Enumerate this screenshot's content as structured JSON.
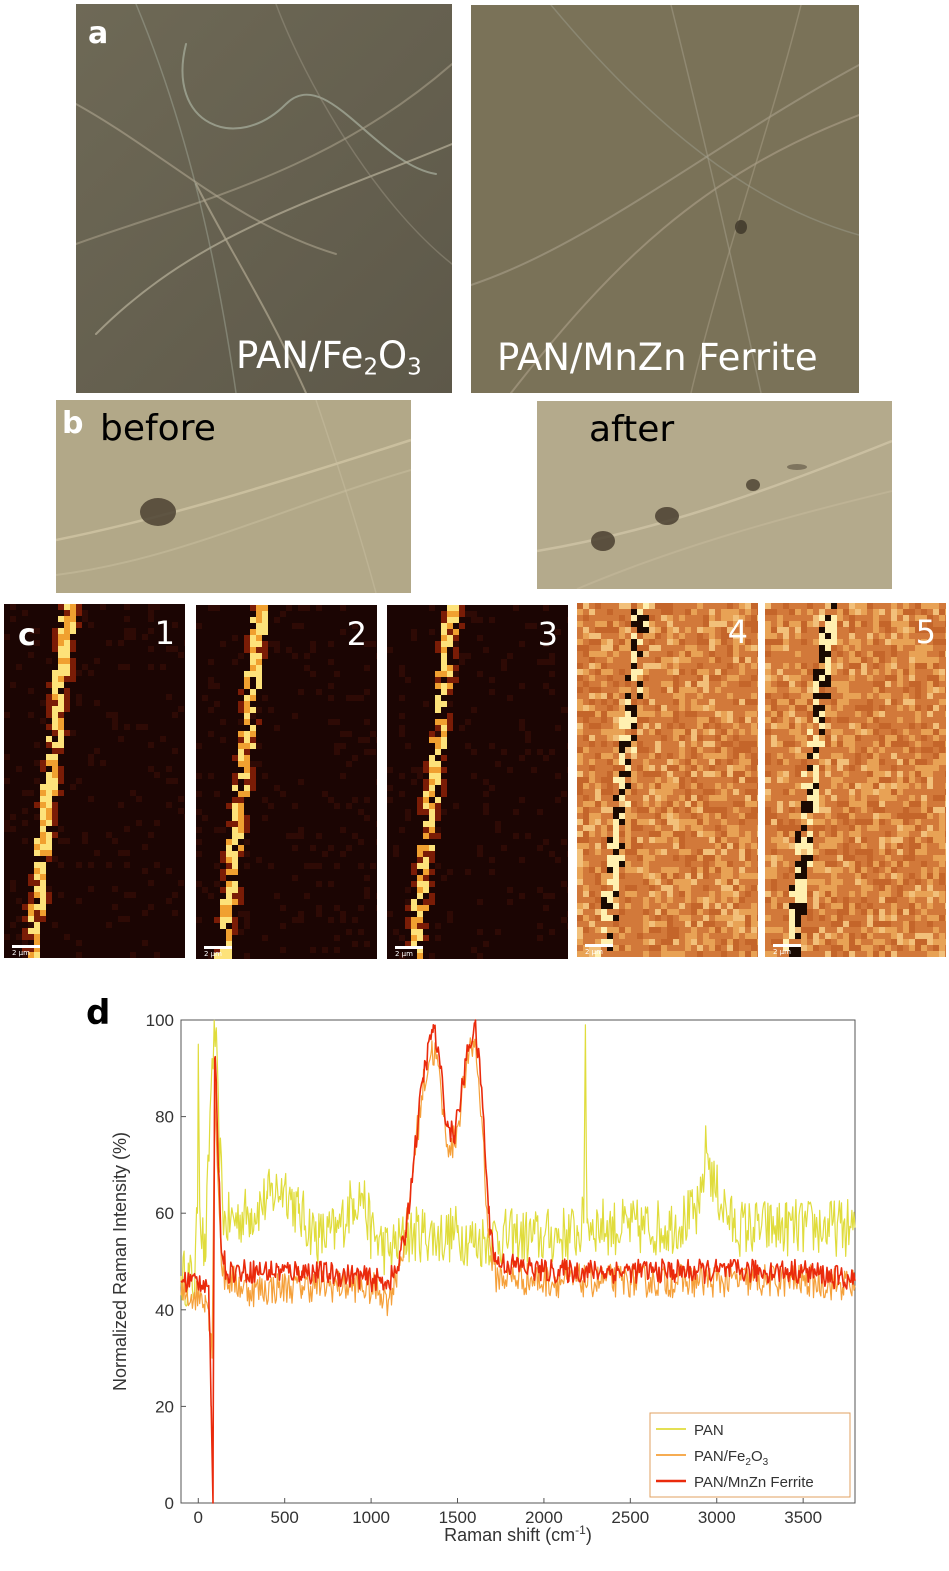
{
  "panels": {
    "a": {
      "letter": "a",
      "left_label": {
        "main": "PAN/Fe",
        "sub1": "2",
        "mid": "O",
        "sub2": "3"
      },
      "right_label": "PAN/MnZn Ferrite"
    },
    "b": {
      "letter": "b",
      "before": "before",
      "after": "after"
    },
    "c": {
      "letter": "c",
      "maps": [
        {
          "num": "1",
          "style": "dark"
        },
        {
          "num": "2",
          "style": "dark"
        },
        {
          "num": "3",
          "style": "dark"
        },
        {
          "num": "4",
          "style": "orange"
        },
        {
          "num": "5",
          "style": "orange"
        }
      ],
      "scale_label": "2 μm"
    },
    "d": {
      "letter": "d"
    }
  },
  "colors": {
    "pan": "#e0dc3c",
    "pan_fe2o3": "#f5a03a",
    "pan_mnzn": "#ea2a0c"
  },
  "chart_data": {
    "type": "line",
    "xlabel": "Raman shift (cm",
    "xlabel_sup": "-1",
    "xlabel_end": ")",
    "ylabel": "Normalized Raman Intensity (%)",
    "xlim": [
      -100,
      3800
    ],
    "ylim": [
      0,
      100
    ],
    "xticks": [
      0,
      500,
      1000,
      1500,
      2000,
      2500,
      3000,
      3500
    ],
    "yticks": [
      0,
      20,
      40,
      60,
      80,
      100
    ],
    "legend_position": "bottom-right",
    "series": [
      {
        "name": "PAN",
        "color": "#e0dc3c",
        "noise": 6,
        "points": [
          [
            -100,
            47
          ],
          [
            -20,
            46
          ],
          [
            -5,
            60
          ],
          [
            0,
            95
          ],
          [
            10,
            60
          ],
          [
            40,
            50
          ],
          [
            80,
            92
          ],
          [
            100,
            97
          ],
          [
            120,
            75
          ],
          [
            150,
            58
          ],
          [
            300,
            60
          ],
          [
            400,
            63
          ],
          [
            500,
            66
          ],
          [
            580,
            60
          ],
          [
            700,
            55
          ],
          [
            800,
            56
          ],
          [
            900,
            63
          ],
          [
            950,
            64
          ],
          [
            1000,
            56
          ],
          [
            1100,
            52
          ],
          [
            1200,
            55
          ],
          [
            1300,
            56
          ],
          [
            1400,
            55
          ],
          [
            1500,
            56
          ],
          [
            1600,
            54
          ],
          [
            1700,
            55
          ],
          [
            2000,
            55
          ],
          [
            2200,
            56
          ],
          [
            2230,
            58
          ],
          [
            2240,
            99
          ],
          [
            2250,
            58
          ],
          [
            2400,
            57
          ],
          [
            2700,
            57
          ],
          [
            2900,
            60
          ],
          [
            2940,
            74
          ],
          [
            2980,
            66
          ],
          [
            3100,
            57
          ],
          [
            3400,
            57
          ],
          [
            3800,
            57
          ]
        ]
      },
      {
        "name": "PAN/Fe2O3",
        "name_display": {
          "main": "PAN/Fe",
          "sub1": "2",
          "mid": "O",
          "sub2": "3"
        },
        "color": "#f5a03a",
        "noise": 3.5,
        "points": [
          [
            -100,
            43
          ],
          [
            40,
            43
          ],
          [
            60,
            40
          ],
          [
            80,
            30
          ],
          [
            95,
            88
          ],
          [
            110,
            70
          ],
          [
            140,
            47
          ],
          [
            300,
            44
          ],
          [
            600,
            45
          ],
          [
            900,
            45
          ],
          [
            1050,
            44
          ],
          [
            1100,
            42
          ],
          [
            1150,
            48
          ],
          [
            1200,
            55
          ],
          [
            1250,
            72
          ],
          [
            1300,
            86
          ],
          [
            1350,
            94
          ],
          [
            1380,
            92
          ],
          [
            1420,
            80
          ],
          [
            1460,
            72
          ],
          [
            1500,
            78
          ],
          [
            1550,
            90
          ],
          [
            1600,
            96
          ],
          [
            1640,
            80
          ],
          [
            1680,
            55
          ],
          [
            1720,
            47
          ],
          [
            2000,
            46
          ],
          [
            2500,
            46
          ],
          [
            3000,
            46
          ],
          [
            3500,
            46
          ],
          [
            3800,
            45
          ]
        ]
      },
      {
        "name": "PAN/MnZn Ferrite",
        "color": "#ea2a0c",
        "noise": 2.5,
        "points": [
          [
            -100,
            46
          ],
          [
            30,
            46
          ],
          [
            60,
            45
          ],
          [
            75,
            20
          ],
          [
            85,
            0
          ],
          [
            95,
            92
          ],
          [
            105,
            85
          ],
          [
            130,
            55
          ],
          [
            160,
            48
          ],
          [
            300,
            48
          ],
          [
            600,
            48
          ],
          [
            900,
            47
          ],
          [
            1050,
            46
          ],
          [
            1100,
            46
          ],
          [
            1150,
            48
          ],
          [
            1200,
            56
          ],
          [
            1250,
            72
          ],
          [
            1300,
            88
          ],
          [
            1360,
            99
          ],
          [
            1400,
            90
          ],
          [
            1440,
            78
          ],
          [
            1480,
            76
          ],
          [
            1520,
            84
          ],
          [
            1560,
            94
          ],
          [
            1600,
            99
          ],
          [
            1640,
            86
          ],
          [
            1680,
            60
          ],
          [
            1720,
            50
          ],
          [
            2000,
            48
          ],
          [
            2500,
            48
          ],
          [
            3000,
            48
          ],
          [
            3500,
            48
          ],
          [
            3800,
            46
          ]
        ]
      }
    ]
  }
}
